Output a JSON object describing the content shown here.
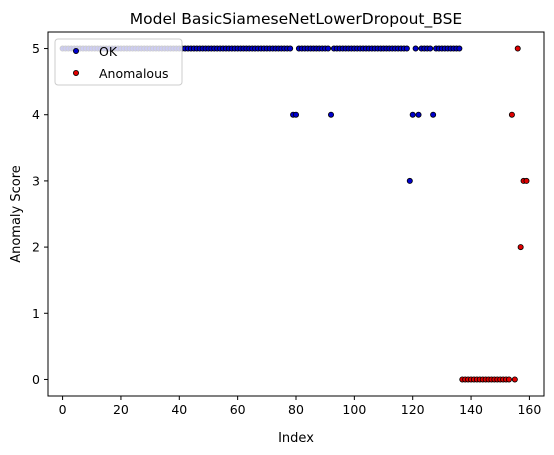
{
  "chart_data": {
    "type": "scatter",
    "title": "Model BasicSiameseNetLowerDropout_BSE",
    "xlabel": "Index",
    "ylabel": "Anomaly Score",
    "xlim": [
      -5,
      165
    ],
    "ylim": [
      -0.25,
      5.25
    ],
    "xticks": [
      0,
      20,
      40,
      60,
      80,
      100,
      120,
      140,
      160
    ],
    "yticks": [
      0,
      1,
      2,
      3,
      4,
      5
    ],
    "grid": false,
    "legend_position": "top-left",
    "series": [
      {
        "name": "OK",
        "color": "#0000cc",
        "points": [
          [
            0,
            5
          ],
          [
            1,
            5
          ],
          [
            2,
            5
          ],
          [
            3,
            5
          ],
          [
            4,
            5
          ],
          [
            5,
            5
          ],
          [
            6,
            5
          ],
          [
            7,
            5
          ],
          [
            8,
            5
          ],
          [
            9,
            5
          ],
          [
            10,
            5
          ],
          [
            11,
            5
          ],
          [
            12,
            5
          ],
          [
            13,
            5
          ],
          [
            14,
            5
          ],
          [
            15,
            5
          ],
          [
            16,
            5
          ],
          [
            17,
            5
          ],
          [
            18,
            5
          ],
          [
            19,
            5
          ],
          [
            20,
            5
          ],
          [
            21,
            5
          ],
          [
            22,
            5
          ],
          [
            23,
            5
          ],
          [
            24,
            5
          ],
          [
            25,
            5
          ],
          [
            26,
            5
          ],
          [
            27,
            5
          ],
          [
            28,
            5
          ],
          [
            29,
            5
          ],
          [
            30,
            5
          ],
          [
            31,
            5
          ],
          [
            32,
            5
          ],
          [
            33,
            5
          ],
          [
            34,
            5
          ],
          [
            35,
            5
          ],
          [
            36,
            5
          ],
          [
            37,
            5
          ],
          [
            38,
            5
          ],
          [
            39,
            5
          ],
          [
            40,
            5
          ],
          [
            41,
            5
          ],
          [
            42,
            5
          ],
          [
            43,
            5
          ],
          [
            44,
            5
          ],
          [
            45,
            5
          ],
          [
            46,
            5
          ],
          [
            47,
            5
          ],
          [
            48,
            5
          ],
          [
            49,
            5
          ],
          [
            50,
            5
          ],
          [
            51,
            5
          ],
          [
            52,
            5
          ],
          [
            53,
            5
          ],
          [
            54,
            5
          ],
          [
            55,
            5
          ],
          [
            56,
            5
          ],
          [
            57,
            5
          ],
          [
            58,
            5
          ],
          [
            59,
            5
          ],
          [
            60,
            5
          ],
          [
            61,
            5
          ],
          [
            62,
            5
          ],
          [
            63,
            5
          ],
          [
            64,
            5
          ],
          [
            65,
            5
          ],
          [
            66,
            5
          ],
          [
            67,
            5
          ],
          [
            68,
            5
          ],
          [
            69,
            5
          ],
          [
            70,
            5
          ],
          [
            71,
            5
          ],
          [
            72,
            5
          ],
          [
            73,
            5
          ],
          [
            74,
            5
          ],
          [
            75,
            5
          ],
          [
            76,
            5
          ],
          [
            77,
            5
          ],
          [
            78,
            5
          ],
          [
            79,
            4
          ],
          [
            80,
            4
          ],
          [
            81,
            5
          ],
          [
            82,
            5
          ],
          [
            83,
            5
          ],
          [
            84,
            5
          ],
          [
            85,
            5
          ],
          [
            86,
            5
          ],
          [
            87,
            5
          ],
          [
            88,
            5
          ],
          [
            89,
            5
          ],
          [
            90,
            5
          ],
          [
            91,
            5
          ],
          [
            92,
            4
          ],
          [
            93,
            5
          ],
          [
            94,
            5
          ],
          [
            95,
            5
          ],
          [
            96,
            5
          ],
          [
            97,
            5
          ],
          [
            98,
            5
          ],
          [
            99,
            5
          ],
          [
            100,
            5
          ],
          [
            101,
            5
          ],
          [
            102,
            5
          ],
          [
            103,
            5
          ],
          [
            104,
            5
          ],
          [
            105,
            5
          ],
          [
            106,
            5
          ],
          [
            107,
            5
          ],
          [
            108,
            5
          ],
          [
            109,
            5
          ],
          [
            110,
            5
          ],
          [
            111,
            5
          ],
          [
            112,
            5
          ],
          [
            113,
            5
          ],
          [
            114,
            5
          ],
          [
            115,
            5
          ],
          [
            116,
            5
          ],
          [
            117,
            5
          ],
          [
            118,
            5
          ],
          [
            119,
            3
          ],
          [
            120,
            4
          ],
          [
            121,
            5
          ],
          [
            122,
            4
          ],
          [
            123,
            5
          ],
          [
            124,
            5
          ],
          [
            125,
            5
          ],
          [
            126,
            5
          ],
          [
            127,
            4
          ],
          [
            128,
            5
          ],
          [
            129,
            5
          ],
          [
            130,
            5
          ],
          [
            131,
            5
          ],
          [
            132,
            5
          ],
          [
            133,
            5
          ],
          [
            134,
            5
          ],
          [
            135,
            5
          ],
          [
            136,
            5
          ]
        ]
      },
      {
        "name": "Anomalous",
        "color": "#e00000",
        "points": [
          [
            137,
            0
          ],
          [
            138,
            0
          ],
          [
            139,
            0
          ],
          [
            140,
            0
          ],
          [
            141,
            0
          ],
          [
            142,
            0
          ],
          [
            143,
            0
          ],
          [
            144,
            0
          ],
          [
            145,
            0
          ],
          [
            146,
            0
          ],
          [
            147,
            0
          ],
          [
            148,
            0
          ],
          [
            149,
            0
          ],
          [
            150,
            0
          ],
          [
            151,
            0
          ],
          [
            152,
            0
          ],
          [
            153,
            0
          ],
          [
            154,
            4
          ],
          [
            155,
            0
          ],
          [
            156,
            5
          ],
          [
            157,
            2
          ],
          [
            158,
            3
          ],
          [
            159,
            3
          ]
        ]
      }
    ]
  }
}
